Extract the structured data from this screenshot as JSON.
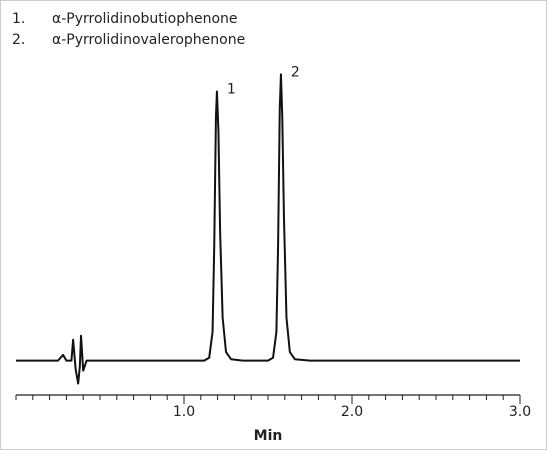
{
  "chart_data": {
    "type": "line",
    "legend_items": [
      {
        "number": "1.",
        "name": "α-Pyrrolidinobutiophenone"
      },
      {
        "number": "2.",
        "name": "α-Pyrrolidinovalerophenone"
      }
    ],
    "x_label": "Min",
    "xlim": [
      0,
      3
    ],
    "ylim": [
      -12,
      105
    ],
    "xticks": [
      {
        "value": 1,
        "label": "1.0"
      },
      {
        "value": 2,
        "label": "2.0"
      },
      {
        "value": 3,
        "label": "3.0"
      }
    ],
    "minor_xticks": [
      0,
      0.1,
      0.2,
      0.3,
      0.4,
      0.5,
      0.6,
      0.7,
      0.8,
      0.9,
      1,
      1.1,
      1.2,
      1.3,
      1.4,
      1.5,
      1.6,
      1.7,
      1.8,
      1.9,
      2,
      2.1,
      2.2,
      2.3,
      2.4,
      2.5,
      2.6,
      2.7,
      2.8,
      2.9,
      3
    ],
    "series": [
      {
        "color": "#111111",
        "x": [
          0,
          0.25,
          0.28,
          0.3,
          0.33,
          0.34,
          0.355,
          0.37,
          0.38,
          0.387,
          0.4,
          0.42,
          1.12,
          1.15,
          1.17,
          1.18,
          1.19,
          1.196,
          1.205,
          1.215,
          1.23,
          1.25,
          1.28,
          1.35,
          1.5,
          1.53,
          1.55,
          1.56,
          1.57,
          1.577,
          1.585,
          1.595,
          1.61,
          1.63,
          1.66,
          1.75,
          3
        ],
        "values": [
          0,
          0,
          2,
          0,
          0,
          7.3,
          -3,
          -8,
          -2,
          8.7,
          -3.5,
          0,
          0,
          1,
          10,
          40,
          85,
          94,
          80,
          45,
          15,
          3,
          0.5,
          0,
          0,
          1,
          10,
          40,
          88,
          100,
          85,
          50,
          15,
          3,
          0.5,
          0,
          0
        ]
      }
    ],
    "annotations": [
      {
        "text": "1",
        "x": 1.196,
        "y": 94
      },
      {
        "text": "2",
        "x": 1.577,
        "y": 100
      }
    ]
  }
}
